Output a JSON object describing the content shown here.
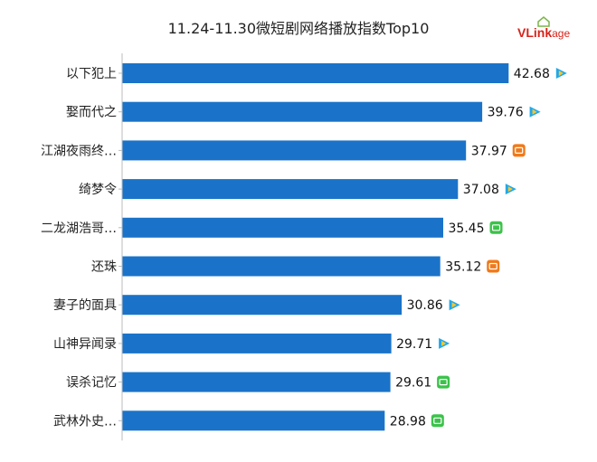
{
  "title": "11.24-11.30微短剧网络播放指数Top10",
  "brand": {
    "logo_main": "VLink",
    "logo_rest": "age"
  },
  "colors": {
    "bar": "#1a73c9",
    "tencent": "#22a8e8",
    "mango": "#f07a1a",
    "iqiyi": "#3cc24a"
  },
  "chart_data": {
    "type": "bar",
    "orientation": "horizontal",
    "title": "11.24-11.30微短剧网络播放指数Top10",
    "xlabel": "",
    "ylabel": "",
    "xlim": [
      0,
      45
    ],
    "grid": false,
    "categories": [
      "以下犯上",
      "娶而代之",
      "江湖夜雨终…",
      "绮梦令",
      "二龙湖浩哥…",
      "还珠",
      "妻子的面具",
      "山神异闻录",
      "误杀记忆",
      "武林外史…"
    ],
    "values": [
      42.68,
      39.76,
      37.97,
      37.08,
      35.45,
      35.12,
      30.86,
      29.71,
      29.61,
      28.98
    ],
    "value_labels": [
      "42.68",
      "39.76",
      "37.97",
      "37.08",
      "35.45",
      "35.12",
      "30.86",
      "29.71",
      "29.61",
      "28.98"
    ],
    "platform_icons": [
      "tencent-video-icon",
      "tencent-video-icon",
      "mango-tv-icon",
      "tencent-video-icon",
      "iqiyi-icon",
      "mango-tv-icon",
      "tencent-video-icon",
      "tencent-video-icon",
      "iqiyi-icon",
      "iqiyi-icon"
    ]
  }
}
